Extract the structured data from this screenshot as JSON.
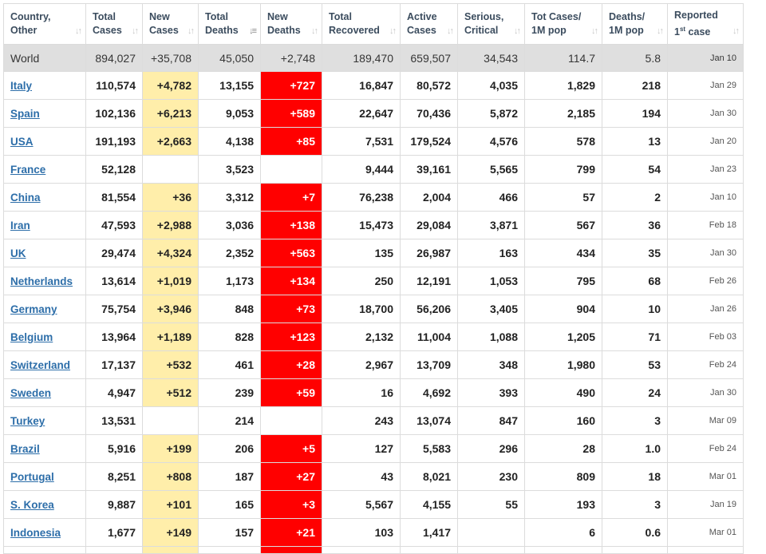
{
  "columns": [
    {
      "label": "Country,\nOther",
      "sort_icon": "sort-icon"
    },
    {
      "label": "Total\nCases",
      "sort_icon": "sort-icon"
    },
    {
      "label": "New\nCases",
      "sort_icon": "sort-icon"
    },
    {
      "label": "Total\nDeaths",
      "sort_icon": "sort-descending-icon"
    },
    {
      "label": "New\nDeaths",
      "sort_icon": "sort-icon"
    },
    {
      "label": "Total\nRecovered",
      "sort_icon": "sort-icon"
    },
    {
      "label": "Active\nCases",
      "sort_icon": "sort-icon"
    },
    {
      "label": "Serious,\nCritical",
      "sort_icon": "sort-icon"
    },
    {
      "label": "Tot Cases/\n1M pop",
      "sort_icon": "sort-icon"
    },
    {
      "label": "Deaths/\n1M pop",
      "sort_icon": "sort-icon"
    },
    {
      "label_main": "Reported",
      "label_pre": "1",
      "label_sup": "st",
      "label_post": " case",
      "sort_icon": "sort-icon"
    }
  ],
  "colors": {
    "new_cases_bg": "#ffeeaa",
    "new_deaths_bg": "#ff0000",
    "world_row_bg": "#dfdfdf",
    "link": "#2d6ea9"
  },
  "world": [
    "World",
    "894,027",
    "+35,708",
    "45,050",
    "+2,748",
    "189,470",
    "659,507",
    "34,543",
    "114.7",
    "5.8",
    "Jan 10"
  ],
  "rows": [
    [
      "Italy",
      "110,574",
      "+4,782",
      "13,155",
      "+727",
      "16,847",
      "80,572",
      "4,035",
      "1,829",
      "218",
      "Jan 29"
    ],
    [
      "Spain",
      "102,136",
      "+6,213",
      "9,053",
      "+589",
      "22,647",
      "70,436",
      "5,872",
      "2,185",
      "194",
      "Jan 30"
    ],
    [
      "USA",
      "191,193",
      "+2,663",
      "4,138",
      "+85",
      "7,531",
      "179,524",
      "4,576",
      "578",
      "13",
      "Jan 20"
    ],
    [
      "France",
      "52,128",
      "",
      "3,523",
      "",
      "9,444",
      "39,161",
      "5,565",
      "799",
      "54",
      "Jan 23"
    ],
    [
      "China",
      "81,554",
      "+36",
      "3,312",
      "+7",
      "76,238",
      "2,004",
      "466",
      "57",
      "2",
      "Jan 10"
    ],
    [
      "Iran",
      "47,593",
      "+2,988",
      "3,036",
      "+138",
      "15,473",
      "29,084",
      "3,871",
      "567",
      "36",
      "Feb 18"
    ],
    [
      "UK",
      "29,474",
      "+4,324",
      "2,352",
      "+563",
      "135",
      "26,987",
      "163",
      "434",
      "35",
      "Jan 30"
    ],
    [
      "Netherlands",
      "13,614",
      "+1,019",
      "1,173",
      "+134",
      "250",
      "12,191",
      "1,053",
      "795",
      "68",
      "Feb 26"
    ],
    [
      "Germany",
      "75,754",
      "+3,946",
      "848",
      "+73",
      "18,700",
      "56,206",
      "3,405",
      "904",
      "10",
      "Jan 26"
    ],
    [
      "Belgium",
      "13,964",
      "+1,189",
      "828",
      "+123",
      "2,132",
      "11,004",
      "1,088",
      "1,205",
      "71",
      "Feb 03"
    ],
    [
      "Switzerland",
      "17,137",
      "+532",
      "461",
      "+28",
      "2,967",
      "13,709",
      "348",
      "1,980",
      "53",
      "Feb 24"
    ],
    [
      "Sweden",
      "4,947",
      "+512",
      "239",
      "+59",
      "16",
      "4,692",
      "393",
      "490",
      "24",
      "Jan 30"
    ],
    [
      "Turkey",
      "13,531",
      "",
      "214",
      "",
      "243",
      "13,074",
      "847",
      "160",
      "3",
      "Mar 09"
    ],
    [
      "Brazil",
      "5,916",
      "+199",
      "206",
      "+5",
      "127",
      "5,583",
      "296",
      "28",
      "1.0",
      "Feb 24"
    ],
    [
      "Portugal",
      "8,251",
      "+808",
      "187",
      "+27",
      "43",
      "8,021",
      "230",
      "809",
      "18",
      "Mar 01"
    ],
    [
      "S. Korea",
      "9,887",
      "+101",
      "165",
      "+3",
      "5,567",
      "4,155",
      "55",
      "193",
      "3",
      "Jan 19"
    ],
    [
      "Indonesia",
      "1,677",
      "+149",
      "157",
      "+21",
      "103",
      "1,417",
      "",
      "6",
      "0.6",
      "Mar 01"
    ]
  ]
}
